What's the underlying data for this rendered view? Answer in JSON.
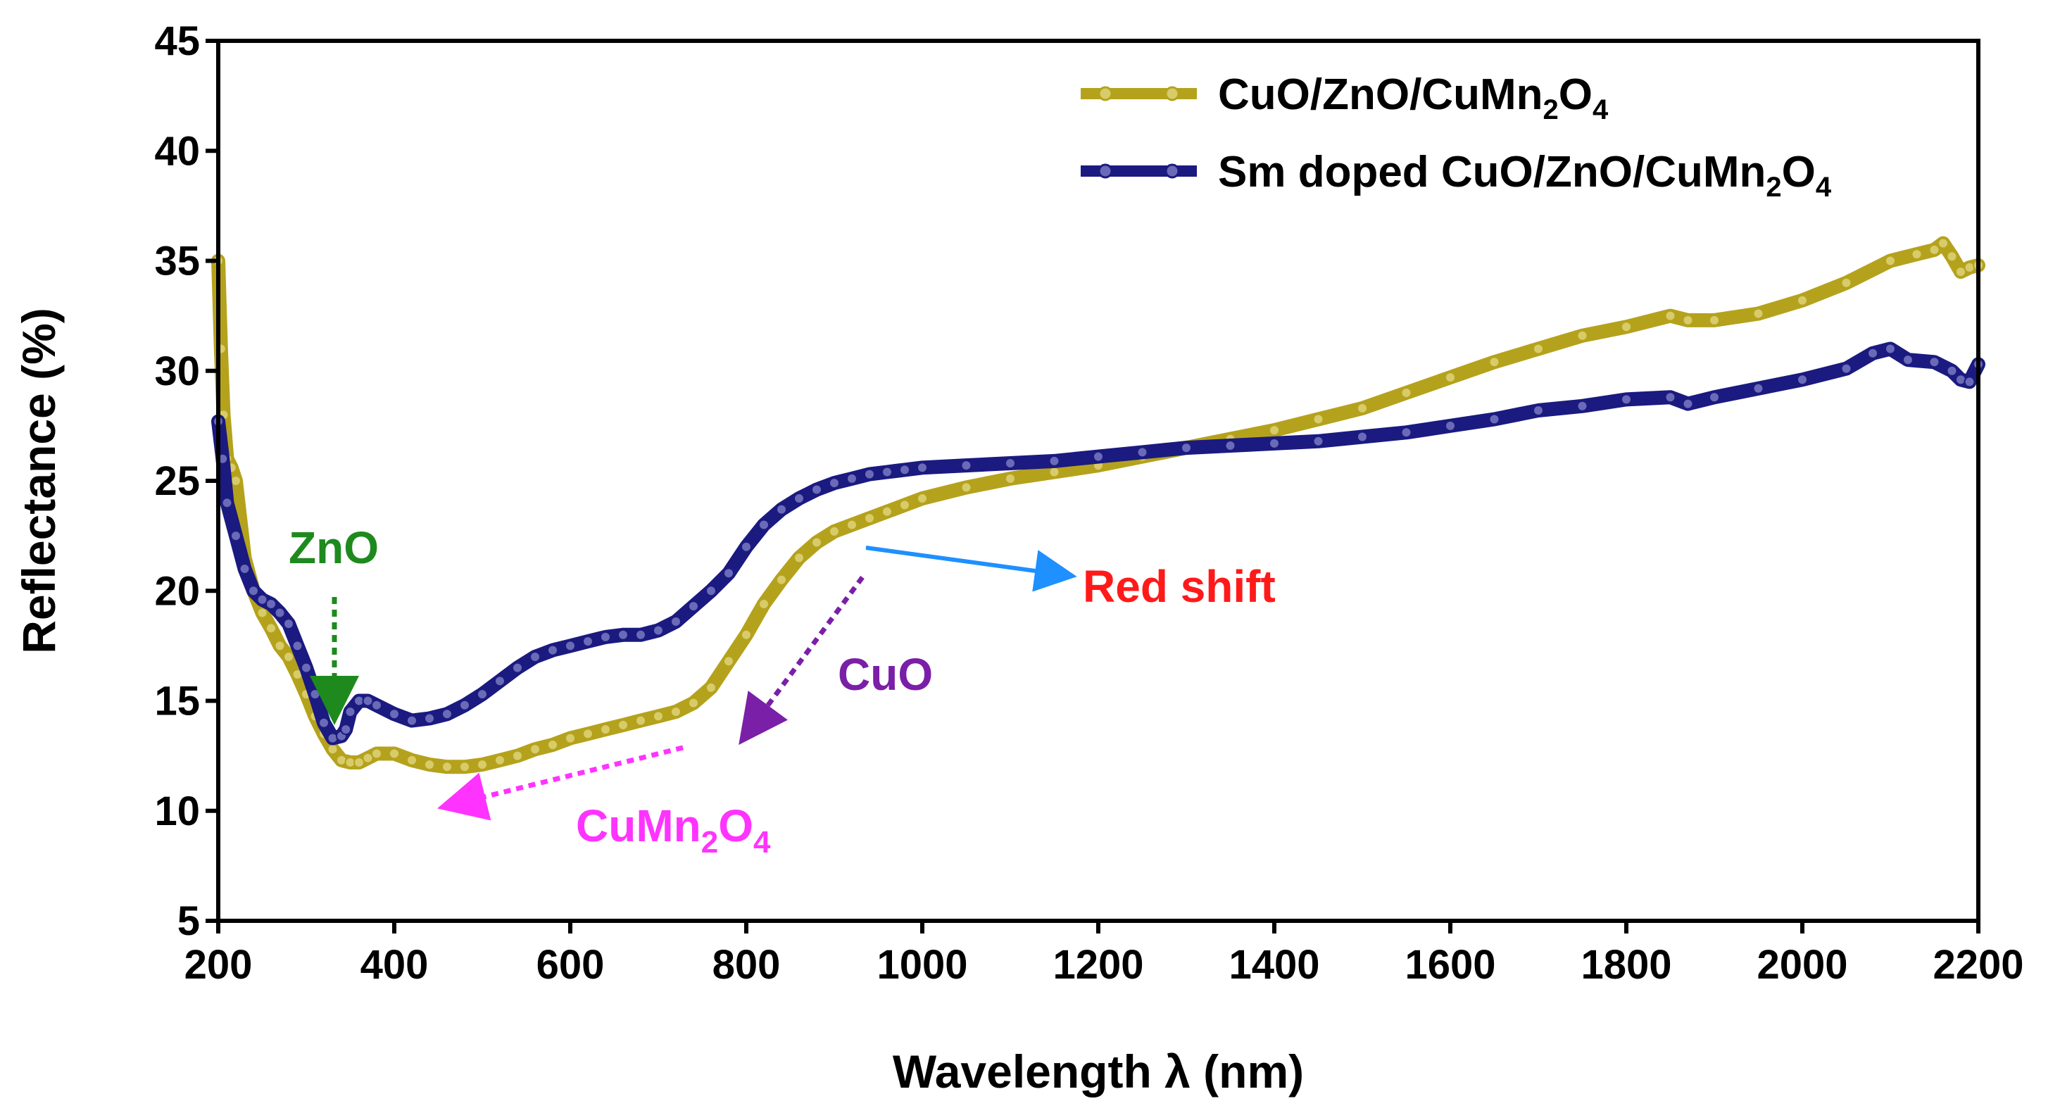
{
  "chart_data": {
    "type": "line",
    "title": "",
    "xlabel": "Wavelength λ (nm)",
    "ylabel": "Reflectance (%)",
    "xlim": [
      200,
      2200
    ],
    "ylim": [
      5,
      45
    ],
    "xticks": [
      200,
      400,
      600,
      800,
      1000,
      1200,
      1400,
      1600,
      1800,
      2000,
      2200
    ],
    "yticks": [
      5,
      10,
      15,
      20,
      25,
      30,
      35,
      40,
      45
    ],
    "xtick_labels": [
      "200",
      "400",
      "600",
      "800",
      "1000",
      "1200",
      "1400",
      "1600",
      "1800",
      "2000",
      "2200"
    ],
    "ytick_labels": [
      "5",
      "10",
      "15",
      "20",
      "25",
      "30",
      "35",
      "40",
      "45"
    ],
    "legend_position": "top-right",
    "series": [
      {
        "name": "CuO/ZnO/CuMn2O4",
        "color": "#b5a21c",
        "x": [
          200,
          203,
          206,
          210,
          215,
          220,
          230,
          240,
          250,
          260,
          270,
          280,
          290,
          300,
          310,
          320,
          330,
          340,
          350,
          360,
          370,
          380,
          400,
          420,
          440,
          460,
          480,
          500,
          520,
          540,
          560,
          580,
          600,
          620,
          640,
          660,
          680,
          700,
          720,
          740,
          760,
          780,
          800,
          820,
          840,
          860,
          880,
          900,
          920,
          940,
          960,
          980,
          1000,
          1050,
          1100,
          1150,
          1200,
          1250,
          1300,
          1350,
          1400,
          1450,
          1500,
          1550,
          1600,
          1650,
          1700,
          1750,
          1800,
          1850,
          1870,
          1900,
          1950,
          2000,
          2050,
          2100,
          2130,
          2150,
          2160,
          2170,
          2180,
          2190,
          2200
        ],
        "values": [
          35.0,
          31.0,
          28.0,
          26.0,
          25.6,
          25.0,
          21.5,
          20.0,
          19.0,
          18.3,
          17.5,
          17.0,
          16.2,
          15.3,
          14.3,
          13.5,
          12.8,
          12.3,
          12.2,
          12.2,
          12.4,
          12.6,
          12.6,
          12.3,
          12.1,
          12.0,
          12.0,
          12.1,
          12.3,
          12.5,
          12.8,
          13.0,
          13.3,
          13.5,
          13.7,
          13.9,
          14.1,
          14.3,
          14.5,
          14.9,
          15.6,
          16.8,
          18.0,
          19.4,
          20.5,
          21.5,
          22.2,
          22.7,
          23.0,
          23.3,
          23.6,
          23.9,
          24.2,
          24.7,
          25.1,
          25.4,
          25.7,
          26.1,
          26.5,
          26.9,
          27.3,
          27.8,
          28.3,
          29.0,
          29.7,
          30.4,
          31.0,
          31.6,
          32.0,
          32.5,
          32.3,
          32.3,
          32.6,
          33.2,
          34.0,
          35.0,
          35.3,
          35.5,
          35.8,
          35.2,
          34.5,
          34.7,
          34.8
        ]
      },
      {
        "name": "Sm doped CuO/ZnO/CuMn2O4",
        "color": "#1a1a80",
        "x": [
          200,
          205,
          210,
          220,
          230,
          240,
          250,
          260,
          270,
          280,
          290,
          300,
          310,
          320,
          330,
          340,
          345,
          350,
          360,
          370,
          380,
          400,
          420,
          440,
          460,
          480,
          500,
          520,
          540,
          560,
          580,
          600,
          620,
          640,
          660,
          680,
          700,
          720,
          740,
          760,
          780,
          800,
          820,
          840,
          860,
          880,
          900,
          920,
          940,
          960,
          980,
          1000,
          1050,
          1100,
          1150,
          1200,
          1250,
          1300,
          1350,
          1400,
          1450,
          1500,
          1550,
          1600,
          1650,
          1700,
          1750,
          1800,
          1850,
          1870,
          1900,
          1950,
          2000,
          2050,
          2080,
          2100,
          2120,
          2150,
          2170,
          2180,
          2190,
          2200
        ],
        "values": [
          27.7,
          26.0,
          24.0,
          22.5,
          21.0,
          20.0,
          19.6,
          19.4,
          19.0,
          18.5,
          17.5,
          16.5,
          15.3,
          14.0,
          13.3,
          13.4,
          13.7,
          14.5,
          15.0,
          15.0,
          14.8,
          14.4,
          14.1,
          14.2,
          14.4,
          14.8,
          15.3,
          15.9,
          16.5,
          17.0,
          17.3,
          17.5,
          17.7,
          17.9,
          18.0,
          18.0,
          18.2,
          18.6,
          19.3,
          20.0,
          20.8,
          22.0,
          23.0,
          23.7,
          24.2,
          24.6,
          24.9,
          25.1,
          25.3,
          25.4,
          25.5,
          25.6,
          25.7,
          25.8,
          25.9,
          26.1,
          26.3,
          26.5,
          26.6,
          26.7,
          26.8,
          27.0,
          27.2,
          27.5,
          27.8,
          28.2,
          28.4,
          28.7,
          28.8,
          28.5,
          28.8,
          29.2,
          29.6,
          30.1,
          30.8,
          31.0,
          30.5,
          30.4,
          30.0,
          29.6,
          29.5,
          30.3
        ]
      }
    ],
    "annotations": [
      {
        "text": "ZnO",
        "color": "#1e8a1e"
      },
      {
        "text": "CuO",
        "color": "#7a1fa8"
      },
      {
        "text": "Red shift",
        "color": "#ff1a1a"
      },
      {
        "text_main": "CuMn",
        "sub1": "2",
        "text_mid": "O",
        "sub2": "4",
        "color": "#ff33ff"
      }
    ],
    "legend": [
      {
        "label_a": "CuO/ZnO/CuMn",
        "sub1": "2",
        "label_b": "O",
        "sub2": "4"
      },
      {
        "label_a": "Sm doped CuO/ZnO/CuMn",
        "sub1": "2",
        "label_b": "O",
        "sub2": "4"
      }
    ],
    "arrow_colors": {
      "zno": "#1e8a1e",
      "cuo": "#7a1fa8",
      "red_shift": "#1e90ff",
      "cumn2o4": "#ff33ff"
    }
  }
}
